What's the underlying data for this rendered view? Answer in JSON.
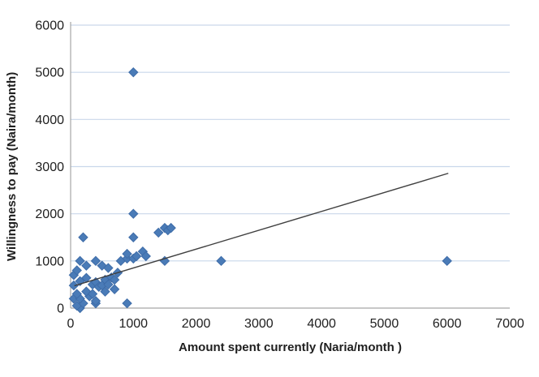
{
  "colors": {
    "marker_fill": "#4a7bb7",
    "marker_stroke": "#3e6ca8",
    "gridline": "#c9d7ea",
    "axis_line": "#a6a6a6",
    "trend_line": "#3f3f3f",
    "text": "#202020",
    "background": "#ffffff"
  },
  "chart_data": {
    "type": "scatter",
    "title": "",
    "xlabel": "Amount spent currently (Naria/month )",
    "ylabel": "Willingness to pay (Naira/month)",
    "xlim": [
      0,
      7000
    ],
    "ylim": [
      0,
      6000
    ],
    "x_ticks": [
      0,
      1000,
      2000,
      3000,
      4000,
      5000,
      6000,
      7000
    ],
    "y_ticks": [
      0,
      1000,
      2000,
      3000,
      4000,
      5000,
      6000
    ],
    "grid": "horizontal-only",
    "legend": "none",
    "marker": "diamond",
    "series": [
      {
        "name": "willingness-vs-spent",
        "points": [
          [
            150,
            0
          ],
          [
            100,
            50
          ],
          [
            400,
            100
          ],
          [
            900,
            100
          ],
          [
            200,
            100
          ],
          [
            50,
            200
          ],
          [
            150,
            200
          ],
          [
            100,
            300
          ],
          [
            300,
            250
          ],
          [
            250,
            350
          ],
          [
            350,
            300
          ],
          [
            400,
            150
          ],
          [
            550,
            350
          ],
          [
            700,
            400
          ],
          [
            50,
            480
          ],
          [
            50,
            700
          ],
          [
            100,
            800
          ],
          [
            150,
            570
          ],
          [
            250,
            640
          ],
          [
            350,
            500
          ],
          [
            400,
            550
          ],
          [
            450,
            450
          ],
          [
            500,
            480
          ],
          [
            550,
            600
          ],
          [
            600,
            500
          ],
          [
            650,
            650
          ],
          [
            700,
            600
          ],
          [
            750,
            750
          ],
          [
            150,
            1000
          ],
          [
            250,
            900
          ],
          [
            400,
            1000
          ],
          [
            500,
            900
          ],
          [
            600,
            850
          ],
          [
            800,
            1000
          ],
          [
            900,
            1050
          ],
          [
            900,
            1150
          ],
          [
            1000,
            1050
          ],
          [
            1050,
            1100
          ],
          [
            1150,
            1200
          ],
          [
            1200,
            1100
          ],
          [
            200,
            1500
          ],
          [
            1000,
            1500
          ],
          [
            1000,
            2000
          ],
          [
            1000,
            5000
          ],
          [
            1400,
            1600
          ],
          [
            1500,
            1700
          ],
          [
            1550,
            1650
          ],
          [
            1600,
            1700
          ],
          [
            1500,
            1000
          ],
          [
            2400,
            1000
          ],
          [
            6000,
            1000
          ]
        ]
      }
    ],
    "trendline": {
      "x1": 60,
      "y1": 474,
      "x2": 6020,
      "y2": 2858
    }
  }
}
